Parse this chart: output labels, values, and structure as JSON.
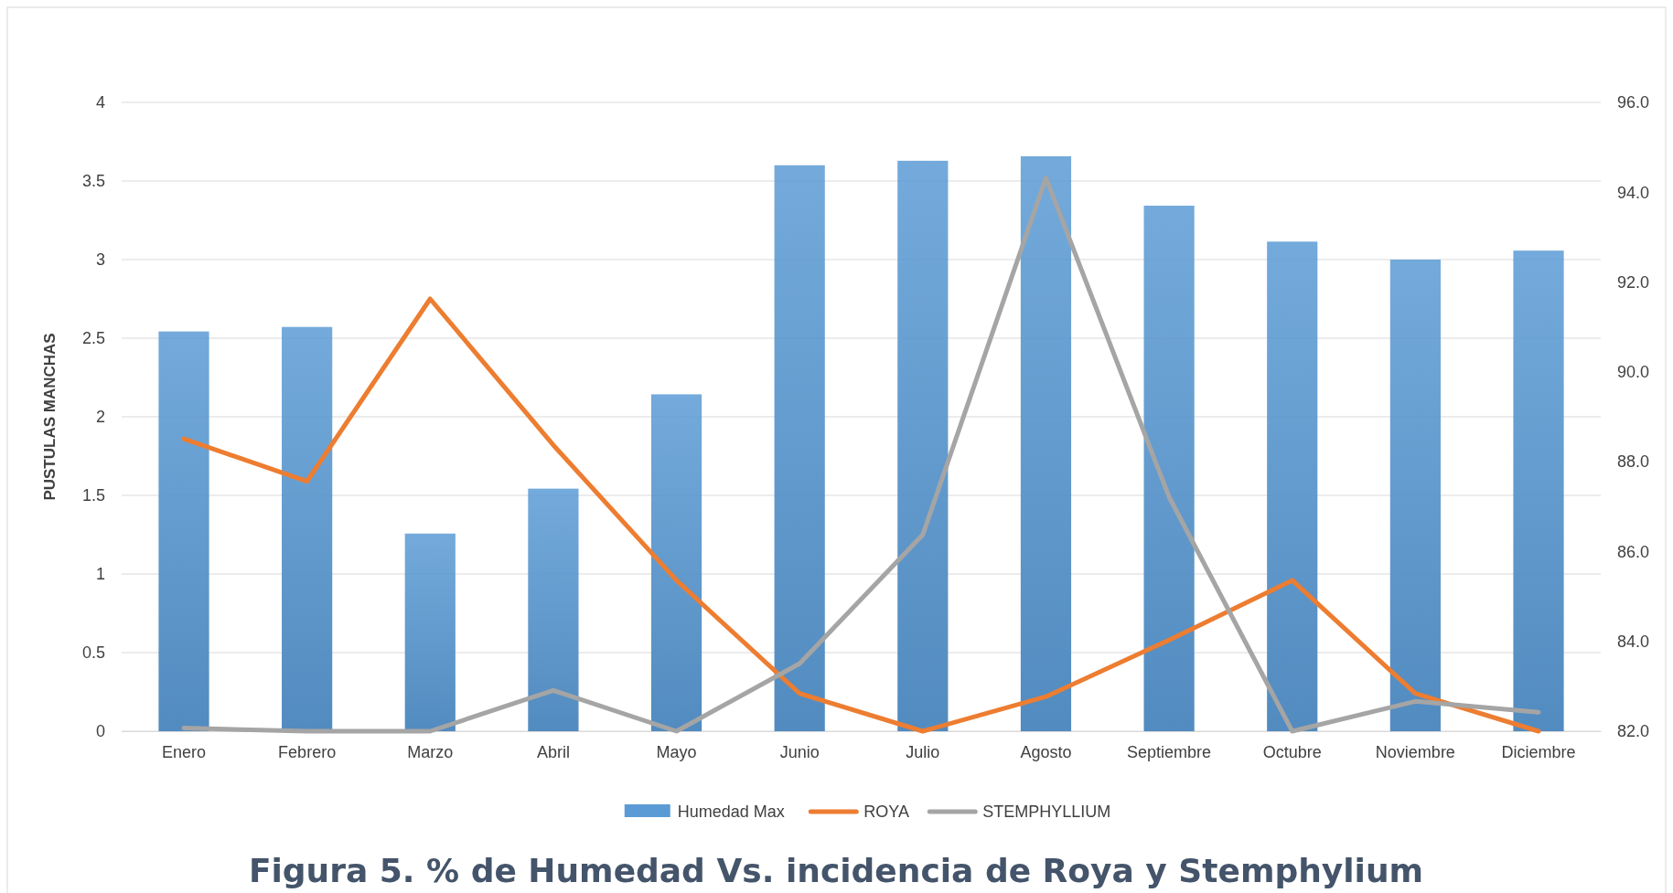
{
  "chart_data": {
    "type": "bar",
    "title": "Figura 5. % de Humedad Vs. incidencia de Roya y Stemphylium",
    "ylabel": "PUSTULAS MANCHAS",
    "categories": [
      "Enero",
      "Febrero",
      "Marzo",
      "Abril",
      "Mayo",
      "Junio",
      "Julio",
      "Agosto",
      "Septiembre",
      "Octubre",
      "Noviembre",
      "Diciembre"
    ],
    "series": [
      {
        "name": "Humedad Max",
        "axis": "y2",
        "color": "#5b9bd5",
        "values": [
          90.9,
          91.0,
          86.4,
          87.4,
          89.5,
          94.6,
          94.7,
          94.8,
          93.7,
          92.9,
          92.5,
          92.7
        ]
      },
      {
        "name": "ROYA",
        "type": "line",
        "color": "#ed7d31",
        "values": [
          1.86,
          1.59,
          2.75,
          1.82,
          0.96,
          0.24,
          0.0,
          0.22,
          0.58,
          0.96,
          0.24,
          0.0
        ]
      },
      {
        "name": "STEMPHYLLIUM",
        "type": "line",
        "color": "#a5a5a5",
        "values": [
          0.02,
          0.0,
          0.0,
          0.26,
          0.0,
          0.43,
          1.25,
          3.52,
          1.49,
          0.0,
          0.19,
          0.12
        ]
      }
    ],
    "ylim": [
      0,
      4
    ],
    "yticks": [
      0,
      0.5,
      1,
      1.5,
      2,
      2.5,
      3,
      3.5,
      4
    ],
    "y2lim": [
      82,
      96
    ],
    "y2ticks": [
      {
        "value": 82,
        "label": "82.0"
      },
      {
        "value": 84,
        "label": "84.0"
      },
      {
        "value": 86,
        "label": "86.0"
      },
      {
        "value": 88,
        "label": "88.0"
      },
      {
        "value": 90,
        "label": "90.0"
      },
      {
        "value": 92,
        "label": "92.0"
      },
      {
        "value": 94,
        "label": "94.0"
      },
      {
        "value": 96,
        "label": "96.0"
      }
    ],
    "grid": "y",
    "legend": "bottom",
    "marker": "none",
    "line_style": "solid"
  }
}
